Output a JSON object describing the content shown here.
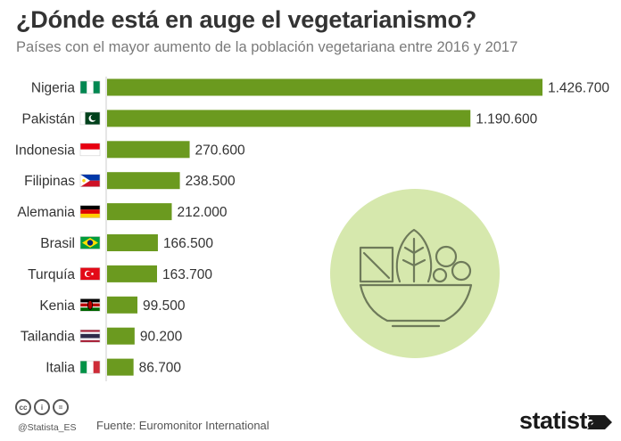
{
  "title": "¿Dónde está en auge el vegetarianismo?",
  "subtitle": "Países con el mayor aumento de la población vegetariana entre 2016 y 2017",
  "footer": {
    "source": "Fuente: Euromonitor International",
    "handle": "@Statista_ES",
    "brand": "statista"
  },
  "colors": {
    "bar": "#6b9a1f",
    "illustration_bg": "#d6e8ad",
    "illustration_stroke": "#6e7a5a"
  },
  "chart_data": {
    "type": "bar",
    "orientation": "horizontal",
    "categories": [
      "Nigeria",
      "Pakistán",
      "Indonesia",
      "Filipinas",
      "Alemania",
      "Brasil",
      "Turquía",
      "Kenia",
      "Tailandia",
      "Italia"
    ],
    "values": [
      1426700,
      1190600,
      270600,
      238500,
      212000,
      166500,
      163700,
      99500,
      90200,
      86700
    ],
    "value_labels": [
      "1.426.700",
      "1.190.600",
      "270.600",
      "238.500",
      "212.000",
      "166.500",
      "163.700",
      "99.500",
      "90.200",
      "86.700"
    ],
    "flags": [
      "nigeria-flag",
      "pakistan-flag",
      "indonesia-flag",
      "philippines-flag",
      "germany-flag",
      "brazil-flag",
      "turkey-flag",
      "kenya-flag",
      "thailand-flag",
      "italy-flag"
    ],
    "xlim": [
      0,
      1426700
    ],
    "grid": false
  }
}
